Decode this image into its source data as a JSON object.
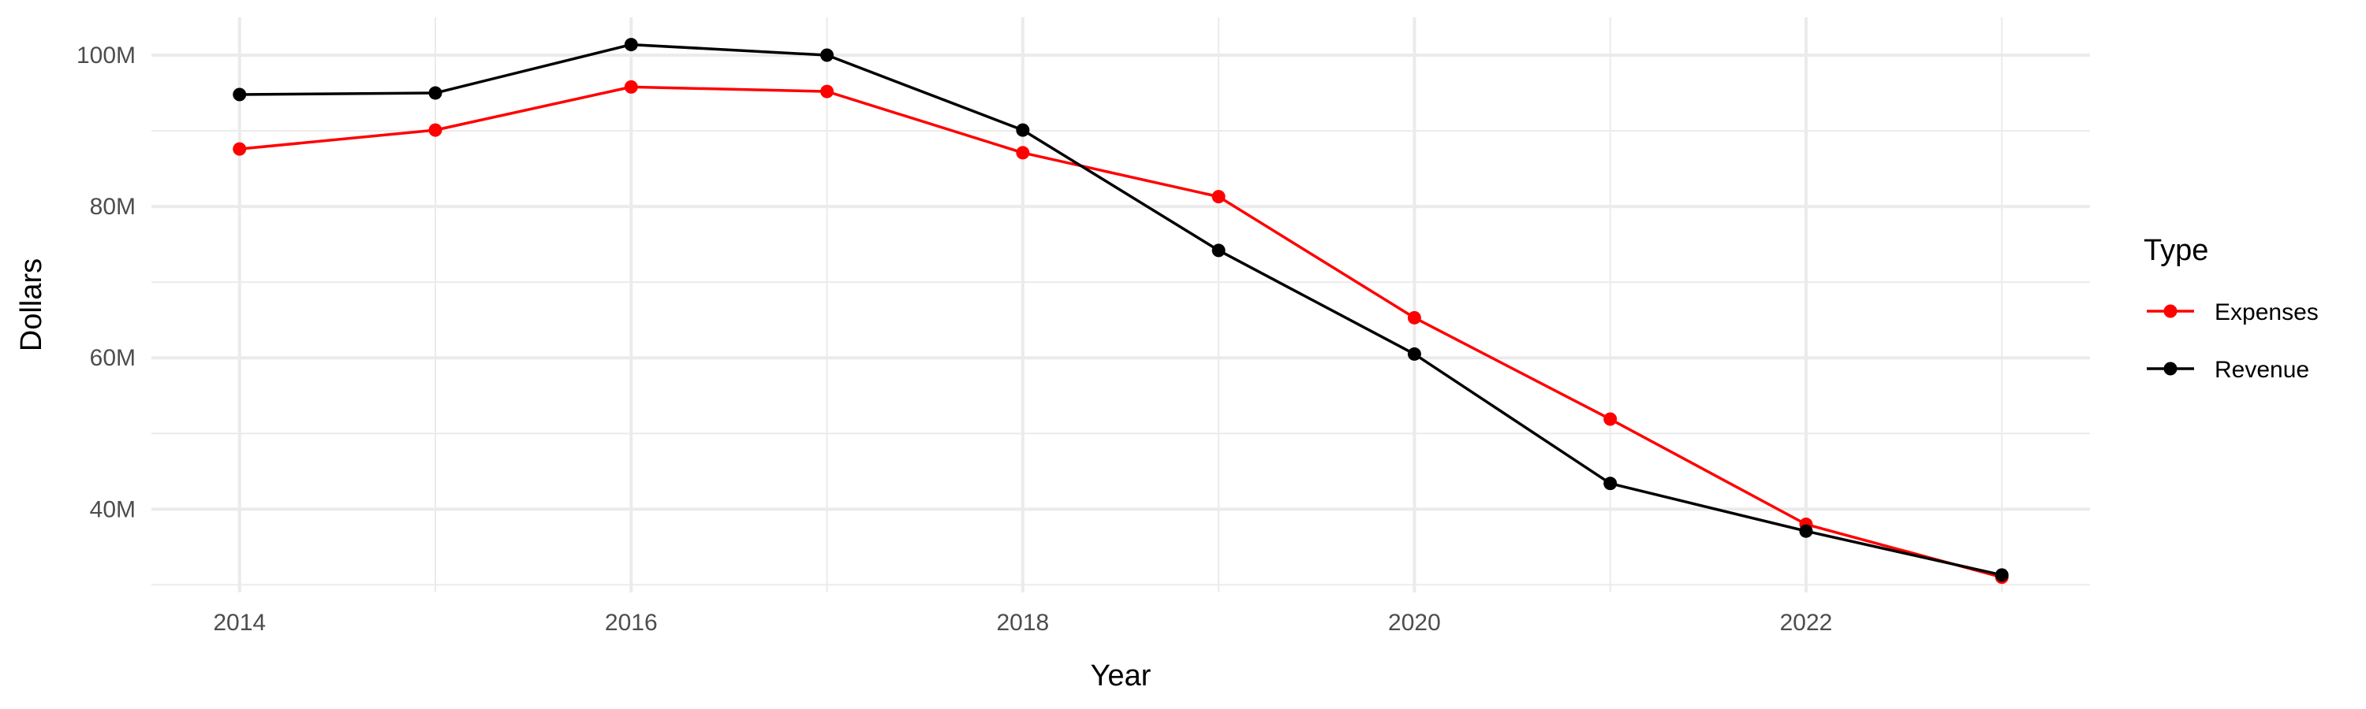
{
  "chart_data": {
    "type": "line",
    "title": "",
    "xlabel": "Year",
    "ylabel": "Dollars",
    "x": [
      2014,
      2015,
      2016,
      2017,
      2018,
      2019,
      2020,
      2021,
      2022,
      2023
    ],
    "x_ticks": [
      2014,
      2016,
      2018,
      2020,
      2022
    ],
    "x_tick_labels": [
      "2014",
      "2016",
      "2018",
      "2020",
      "2022"
    ],
    "y_ticks": [
      40000000,
      60000000,
      80000000,
      100000000
    ],
    "y_tick_labels": [
      "40M",
      "60M",
      "80M",
      "100M"
    ],
    "xlim": [
      2013.55,
      2023.45
    ],
    "ylim": [
      29000000,
      105000000
    ],
    "grid": true,
    "legend": {
      "title": "Type",
      "position": "right"
    },
    "series": [
      {
        "name": "Expenses",
        "color": "#ff0000",
        "values": [
          87600000,
          90100000,
          95800000,
          95200000,
          87100000,
          81300000,
          65300000,
          51900000,
          38000000,
          31000000
        ]
      },
      {
        "name": "Revenue",
        "color": "#000000",
        "values": [
          94800000,
          95000000,
          101400000,
          100000000,
          90100000,
          74200000,
          60500000,
          43400000,
          37100000,
          31300000
        ]
      }
    ]
  }
}
